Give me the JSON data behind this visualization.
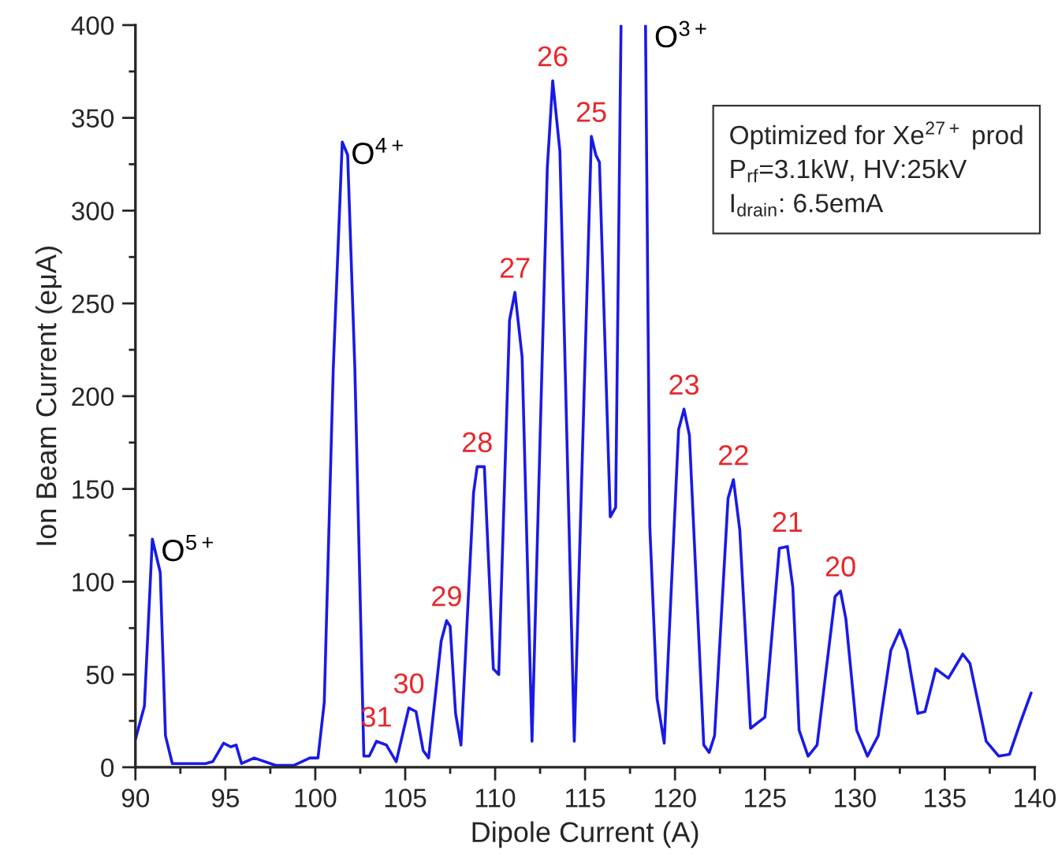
{
  "chart_data": {
    "type": "line",
    "xlabel": "Dipole Current (A)",
    "ylabel": "Ion Beam Current (eμA)",
    "series": [
      {
        "color": "#1a1ae6",
        "x": [
          90,
          90.5,
          90.94,
          91.38,
          91.67,
          92.05,
          93.9,
          94.3,
          94.9,
          95.3,
          95.6,
          95.9,
          96.6,
          97.8,
          98.8,
          99.7,
          100.15,
          100.5,
          101.0,
          101.5,
          101.8,
          102.2,
          102.7,
          103.0,
          103.4,
          103.95,
          104.5,
          105.2,
          105.6,
          106.0,
          106.3,
          107.0,
          107.3,
          107.5,
          107.8,
          108.1,
          108.8,
          109.0,
          109.4,
          109.9,
          110.2,
          110.8,
          111.1,
          111.5,
          112.05,
          112.9,
          113.2,
          113.6,
          114.4,
          115.35,
          115.6,
          115.8,
          116.4,
          116.7,
          117.0,
          117.7,
          118.36,
          118.6,
          119.0,
          119.4,
          120.2,
          120.5,
          120.8,
          121.6,
          121.9,
          122.2,
          122.95,
          123.25,
          123.6,
          124.2,
          124.6,
          125.0,
          125.8,
          126.25,
          126.55,
          126.9,
          127.4,
          127.9,
          128.9,
          129.2,
          129.5,
          130.1,
          130.7,
          131.3,
          132.0,
          132.5,
          132.9,
          133.5,
          133.9,
          134.5,
          135.2,
          136.0,
          136.4,
          137.3,
          138.0,
          138.6,
          139.2,
          139.8
        ],
        "values": [
          15,
          33,
          123,
          105,
          17,
          2,
          2,
          3,
          13,
          11,
          12,
          2,
          5,
          1,
          1,
          5,
          5,
          35,
          215,
          337,
          330,
          215,
          6,
          6,
          14,
          12,
          3,
          32,
          30,
          9,
          5,
          68,
          79,
          76,
          29,
          12,
          148,
          162,
          162,
          53,
          50,
          241,
          256,
          221,
          14,
          323,
          370,
          332,
          14,
          340,
          330,
          326,
          135,
          140,
          400,
          null,
          400,
          130,
          37,
          13,
          182,
          193,
          179,
          12,
          8,
          17,
          145,
          155,
          128,
          21,
          24,
          27,
          118,
          119,
          97,
          20,
          6,
          12,
          92,
          95,
          80,
          20,
          6,
          17,
          63,
          74,
          63,
          29,
          30,
          53,
          48,
          61,
          56,
          14,
          6,
          7,
          24,
          40
        ]
      }
    ],
    "xlim": [
      90,
      140
    ],
    "xticks": [
      90,
      {
        "value": 92.5,
        "label": null
      },
      95,
      {
        "value": 97.5,
        "label": null
      },
      100,
      {
        "value": 102.5,
        "label": null
      },
      105,
      {
        "value": 107.5,
        "label": null
      },
      110,
      {
        "value": 112.5,
        "label": null
      },
      115,
      {
        "value": 117.5,
        "label": null
      },
      120,
      {
        "value": 122.5,
        "label": null
      },
      125,
      {
        "value": 127.5,
        "label": null
      },
      130,
      {
        "value": 132.5,
        "label": null
      },
      135,
      {
        "value": 137.5,
        "label": null
      },
      140
    ],
    "ylim": [
      0,
      400
    ],
    "yticks": [
      0,
      {
        "value": 25,
        "label": null
      },
      50,
      {
        "value": 75,
        "label": null
      },
      100,
      {
        "value": 125,
        "label": null
      },
      150,
      {
        "value": 175,
        "label": null
      },
      200,
      {
        "value": 225,
        "label": null
      },
      250,
      {
        "value": 275,
        "label": null
      },
      300,
      {
        "value": 325,
        "label": null
      },
      350,
      {
        "value": 375,
        "label": null
      },
      400
    ],
    "grid": false,
    "legend": false,
    "marker": "none",
    "line_style": "solid",
    "annotations": [
      {
        "text": "O$^{5+}$",
        "x": 90.94,
        "y": 123
      },
      {
        "text": "O$^{4+}$",
        "x": 101.5,
        "y": 337
      },
      {
        "text": "O$^{3+}$",
        "x": 118.36,
        "y": 400
      },
      {
        "text": "31",
        "x": 103.4,
        "y": 14
      },
      {
        "text": "30",
        "x": 105.2,
        "y": 32
      },
      {
        "text": "29",
        "x": 107.3,
        "y": 79
      },
      {
        "text": "28",
        "x": 109.0,
        "y": 162
      },
      {
        "text": "27",
        "x": 111.1,
        "y": 256
      },
      {
        "text": "26",
        "x": 113.2,
        "y": 370
      },
      {
        "text": "25",
        "x": 115.35,
        "y": 340
      },
      {
        "text": "23",
        "x": 120.5,
        "y": 193
      },
      {
        "text": "22",
        "x": 123.25,
        "y": 155
      },
      {
        "text": "21",
        "x": 126.25,
        "y": 119
      },
      {
        "text": "20",
        "x": 129.2,
        "y": 95
      },
      "Optimized for Xe$^{27+}$ prod",
      "P$_{rf}$=3.1kW, HV:25kV",
      "I$_{drain}$: 6.5emA"
    ]
  }
}
